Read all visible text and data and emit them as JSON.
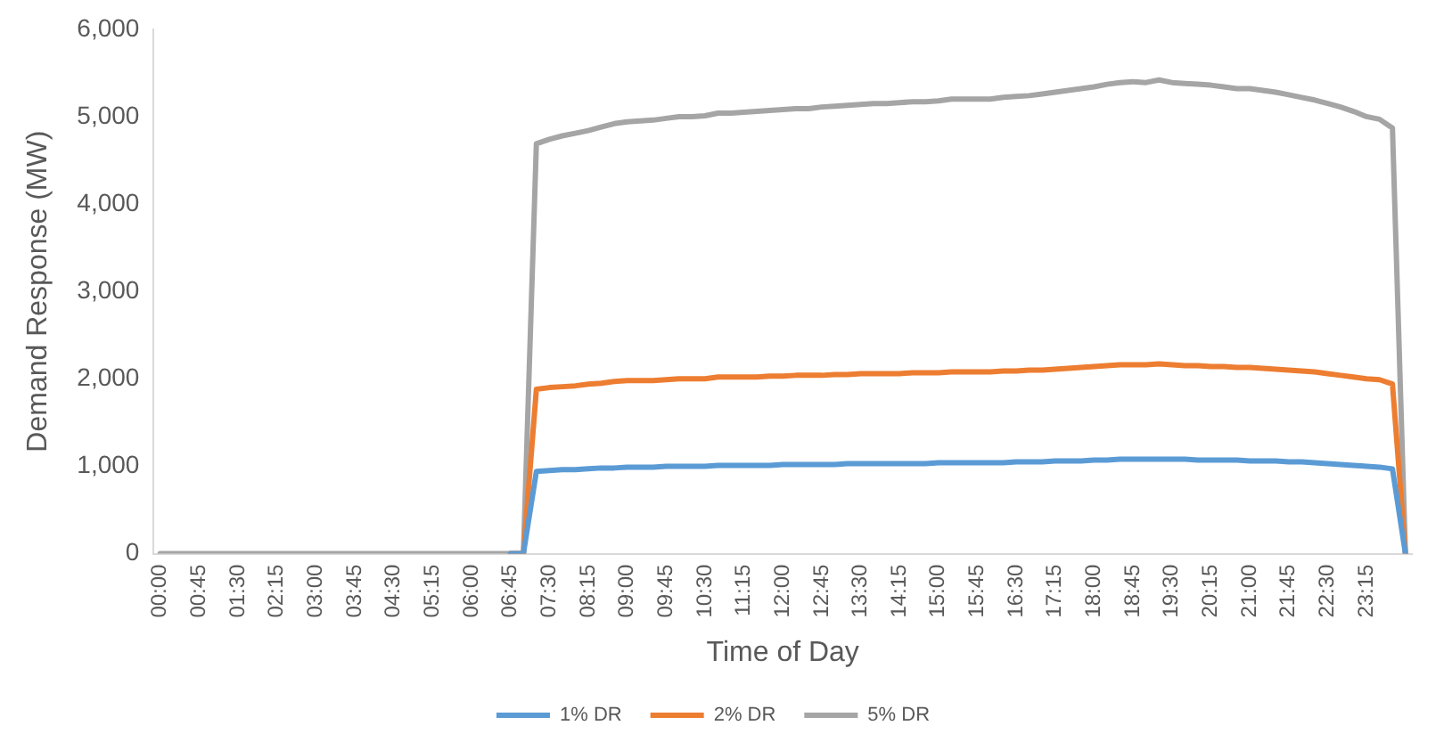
{
  "chart_data": {
    "type": "line",
    "xlabel": "Time of Day",
    "ylabel": "Demand Response (MW)",
    "categories": [
      "00:00",
      null,
      null,
      "00:45",
      null,
      null,
      "01:30",
      null,
      null,
      "02:15",
      null,
      null,
      "03:00",
      null,
      null,
      "03:45",
      null,
      null,
      "04:30",
      null,
      null,
      "05:15",
      null,
      null,
      "06:00",
      null,
      null,
      "06:45",
      null,
      null,
      "07:30",
      null,
      null,
      "08:15",
      null,
      null,
      "09:00",
      null,
      null,
      "09:45",
      null,
      null,
      "10:30",
      null,
      null,
      "11:15",
      null,
      null,
      "12:00",
      null,
      null,
      "12:45",
      null,
      null,
      "13:30",
      null,
      null,
      "14:15",
      null,
      null,
      "15:00",
      null,
      null,
      "15:45",
      null,
      null,
      "16:30",
      null,
      null,
      "17:15",
      null,
      null,
      "18:00",
      null,
      null,
      "18:45",
      null,
      null,
      "19:30",
      null,
      null,
      "20:15",
      null,
      null,
      "21:00",
      null,
      null,
      "21:45",
      null,
      null,
      "22:30",
      null,
      null,
      "23:15",
      null,
      null,
      null
    ],
    "series": [
      {
        "name": "1% DR",
        "color": "#5b9bd5",
        "values": [
          null,
          null,
          null,
          null,
          null,
          null,
          null,
          null,
          null,
          null,
          null,
          null,
          null,
          null,
          null,
          null,
          null,
          null,
          null,
          null,
          null,
          null,
          null,
          null,
          null,
          null,
          null,
          0,
          0,
          940,
          950,
          960,
          960,
          970,
          980,
          980,
          990,
          990,
          990,
          1000,
          1000,
          1000,
          1000,
          1010,
          1010,
          1010,
          1010,
          1010,
          1020,
          1020,
          1020,
          1020,
          1020,
          1030,
          1030,
          1030,
          1030,
          1030,
          1030,
          1030,
          1040,
          1040,
          1040,
          1040,
          1040,
          1040,
          1050,
          1050,
          1050,
          1060,
          1060,
          1060,
          1070,
          1070,
          1080,
          1080,
          1080,
          1080,
          1080,
          1080,
          1070,
          1070,
          1070,
          1070,
          1060,
          1060,
          1060,
          1050,
          1050,
          1040,
          1030,
          1020,
          1010,
          1000,
          990,
          970,
          0
        ]
      },
      {
        "name": "2% DR",
        "color": "#ed7d31",
        "values": [
          null,
          null,
          null,
          null,
          null,
          null,
          null,
          null,
          null,
          null,
          null,
          null,
          null,
          null,
          null,
          null,
          null,
          null,
          null,
          null,
          null,
          null,
          null,
          null,
          null,
          null,
          null,
          0,
          0,
          1880,
          1900,
          1910,
          1920,
          1940,
          1950,
          1970,
          1980,
          1980,
          1980,
          1990,
          2000,
          2000,
          2000,
          2020,
          2020,
          2020,
          2020,
          2030,
          2030,
          2040,
          2040,
          2040,
          2050,
          2050,
          2060,
          2060,
          2060,
          2060,
          2070,
          2070,
          2070,
          2080,
          2080,
          2080,
          2080,
          2090,
          2090,
          2100,
          2100,
          2110,
          2120,
          2130,
          2140,
          2150,
          2160,
          2160,
          2160,
          2170,
          2160,
          2150,
          2150,
          2140,
          2140,
          2130,
          2130,
          2120,
          2110,
          2100,
          2090,
          2080,
          2060,
          2040,
          2020,
          2000,
          1990,
          1940,
          0
        ]
      },
      {
        "name": "5% DR",
        "color": "#a5a5a5",
        "values": [
          0,
          0,
          0,
          0,
          0,
          0,
          0,
          0,
          0,
          0,
          0,
          0,
          0,
          0,
          0,
          0,
          0,
          0,
          0,
          0,
          0,
          0,
          0,
          0,
          0,
          0,
          0,
          0,
          0,
          4690,
          4740,
          4780,
          4810,
          4840,
          4880,
          4920,
          4940,
          4950,
          4960,
          4980,
          5000,
          5000,
          5010,
          5040,
          5040,
          5050,
          5060,
          5070,
          5080,
          5090,
          5090,
          5110,
          5120,
          5130,
          5140,
          5150,
          5150,
          5160,
          5170,
          5170,
          5180,
          5200,
          5200,
          5200,
          5200,
          5220,
          5230,
          5240,
          5260,
          5280,
          5300,
          5320,
          5340,
          5370,
          5390,
          5400,
          5390,
          5420,
          5390,
          5380,
          5370,
          5360,
          5340,
          5320,
          5320,
          5300,
          5280,
          5250,
          5220,
          5190,
          5150,
          5110,
          5060,
          5000,
          4970,
          4870,
          0
        ]
      }
    ],
    "ylim": [
      0,
      6000
    ],
    "yticks": [
      {
        "value": 0,
        "label": "0"
      },
      {
        "value": 1000,
        "label": "1,000"
      },
      {
        "value": 2000,
        "label": "2,000"
      },
      {
        "value": 3000,
        "label": "3,000"
      },
      {
        "value": 4000,
        "label": "4,000"
      },
      {
        "value": 5000,
        "label": "5,000"
      },
      {
        "value": 6000,
        "label": "6,000"
      }
    ],
    "legend": "bottom",
    "marker": "none",
    "line_style": "solid"
  }
}
